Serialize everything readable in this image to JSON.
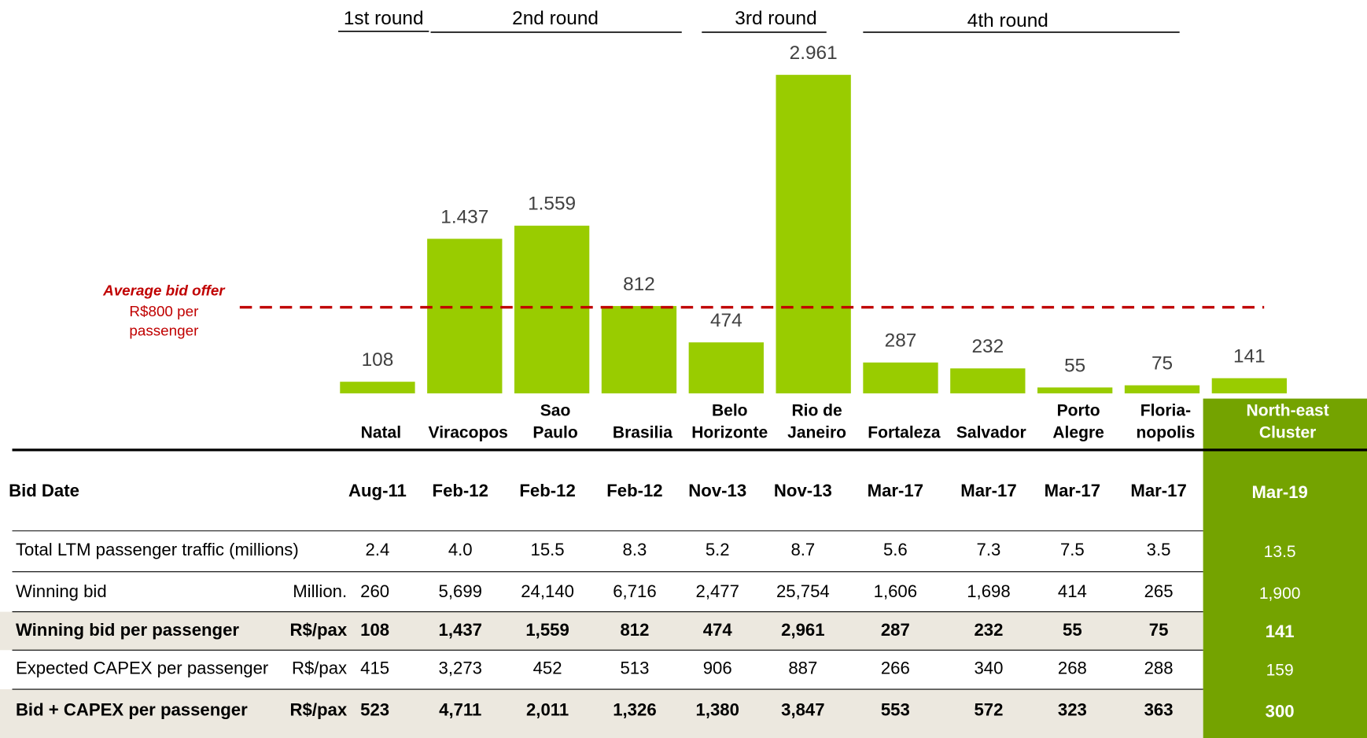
{
  "chart_data": {
    "type": "bar",
    "categories": [
      "Natal",
      "Viracopos",
      "Sao\nPaulo",
      "Brasilia",
      "Belo\nHorizonte",
      "Rio de\nJaneiro",
      "Fortaleza",
      "Salvador",
      "Porto\nAlegre",
      "Floria-\nnopolis",
      "North-east\nCluster"
    ],
    "values": [
      108,
      1437,
      1559,
      812,
      474,
      2961,
      287,
      232,
      55,
      75,
      141
    ],
    "value_labels": [
      "108",
      "1.437",
      "1.559",
      "812",
      "474",
      "2.961",
      "287",
      "232",
      "55",
      "75",
      "141"
    ],
    "color": "#99cc00",
    "rounds": [
      "1st round",
      "2nd round",
      "3rd round",
      "4th round"
    ],
    "reference_line": {
      "value": 800,
      "title": "Average bid offer",
      "label": "R$800 per\npassenger",
      "color": "#c00000"
    }
  },
  "table": {
    "rows": [
      {
        "label": "Bid Date",
        "values": [
          "Aug-11",
          "Feb-12",
          "Feb-12",
          "Feb-12",
          "Nov-13",
          "Nov-13",
          "Mar-17",
          "Mar-17",
          "Mar-17",
          "Mar-17",
          "Mar-19"
        ]
      },
      {
        "label": "Total LTM passenger traffic (millions)",
        "values": [
          "2.4",
          "4.0",
          "15.5",
          "8.3",
          "5.2",
          "8.7",
          "5.6",
          "7.3",
          "7.5",
          "3.5",
          "13.5"
        ]
      },
      {
        "label": "Winning bid",
        "unit": "Million.",
        "values": [
          "260",
          "5,699",
          "24,140",
          "6,716",
          "2,477",
          "25,754",
          "1,606",
          "1,698",
          "414",
          "265",
          "1,900"
        ]
      },
      {
        "label": "Winning bid per passenger",
        "unit": "R$/pax",
        "values": [
          "108",
          "1,437",
          "1,559",
          "812",
          "474",
          "2,961",
          "287",
          "232",
          "55",
          "75",
          "141"
        ]
      },
      {
        "label": "Expected CAPEX per passenger",
        "unit": "R$/pax",
        "values": [
          "415",
          "3,273",
          "452",
          "513",
          "906",
          "887",
          "266",
          "340",
          "268",
          "288",
          "159"
        ]
      },
      {
        "label": "Bid + CAPEX per passenger",
        "unit": "R$/pax",
        "values": [
          "523",
          "4,711",
          "2,011",
          "1,326",
          "1,380",
          "3,847",
          "553",
          "572",
          "323",
          "363",
          "300"
        ]
      }
    ]
  }
}
